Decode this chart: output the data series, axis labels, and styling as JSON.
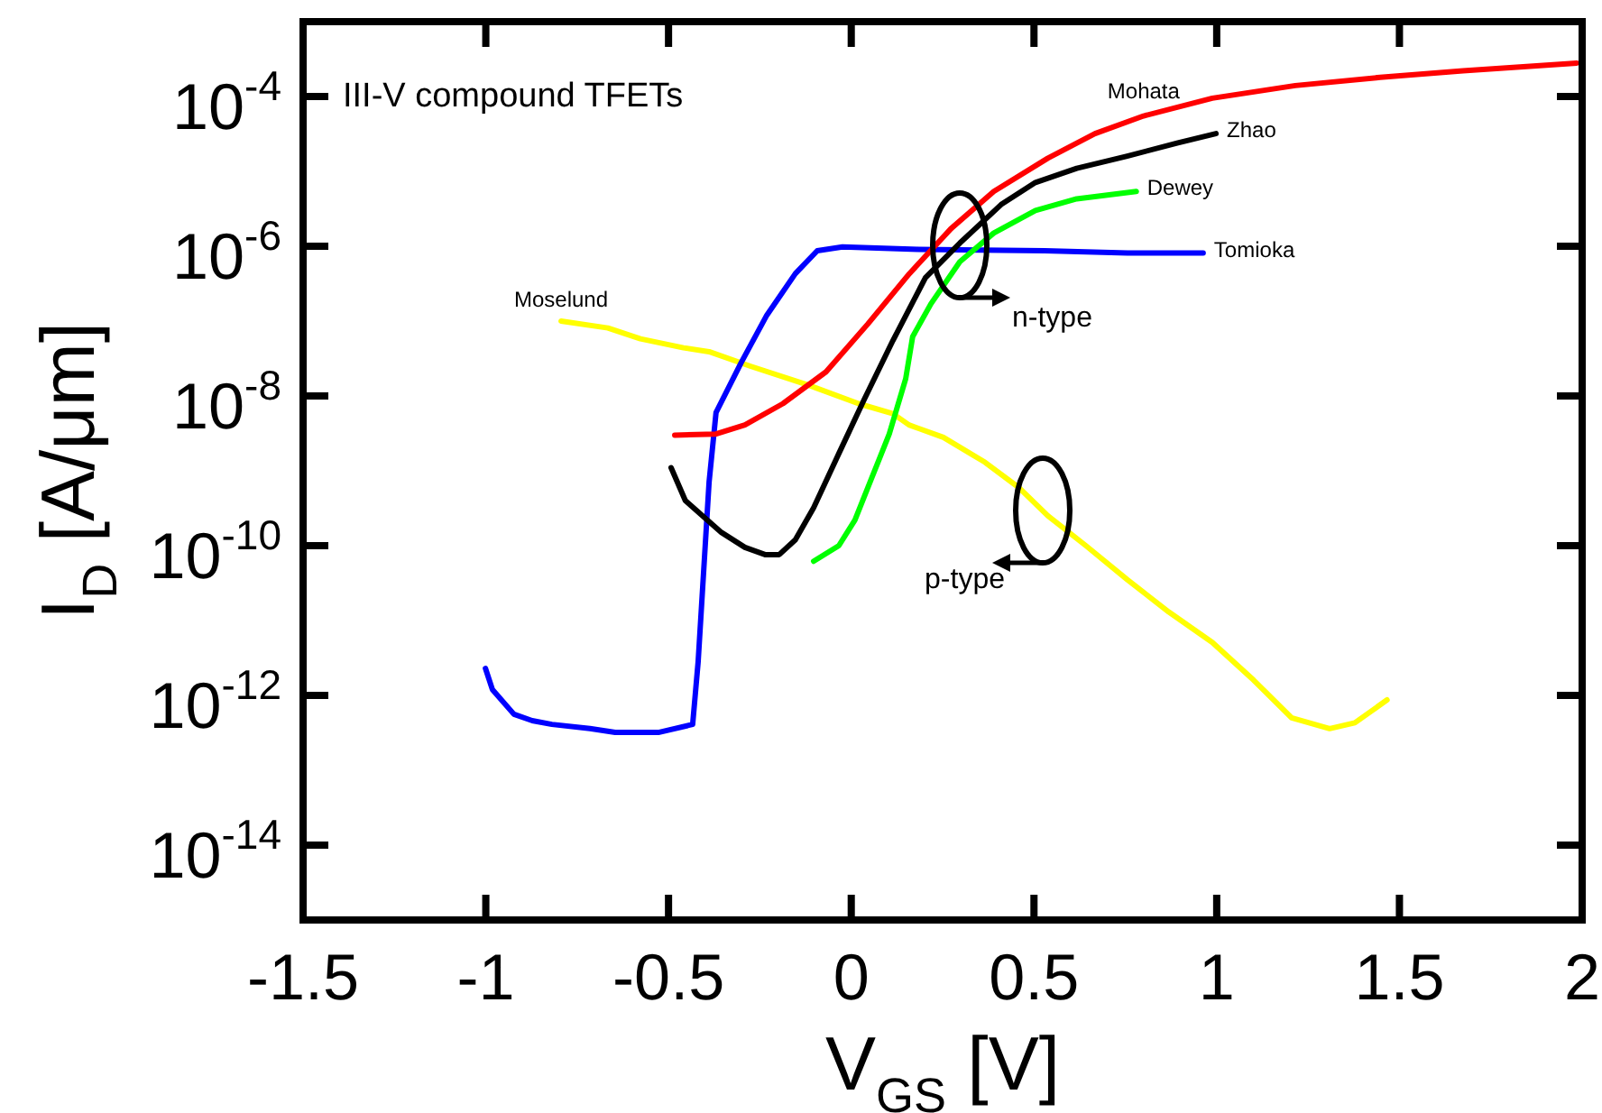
{
  "chart_data": {
    "type": "line",
    "title": "III-V compound TFETs",
    "xlabel": "V$_{GS}$ [V]",
    "ylabel": "I$_{D}$ [A/μm]",
    "log": "y",
    "grid": false,
    "legend": false,
    "marker": "none",
    "line_style": "solid",
    "xlim": [
      -1.5,
      2
    ],
    "xticks": [
      -1.5,
      -1,
      -0.5,
      0,
      0.5,
      1,
      1.5,
      2
    ],
    "ylim": [
      1e-15,
      0.001
    ],
    "yticks": [
      {
        "value": 0.0001,
        "label": "10$^{-4}$"
      },
      {
        "value": 1e-06,
        "label": "10$^{-6}$"
      },
      {
        "value": 1e-08,
        "label": "10$^{-8}$"
      },
      {
        "value": 1e-10,
        "label": "10$^{-10}$"
      },
      {
        "value": 1e-12,
        "label": "10$^{-12}$"
      },
      {
        "value": 1e-14,
        "label": "10$^{-14}$"
      }
    ],
    "annotations": [
      "n-type",
      "p-type"
    ],
    "series": [
      {
        "name": "Mohata",
        "color": "#ff0000",
        "x": [
          -0.483,
          -0.37,
          -0.291,
          -0.187,
          -0.069,
          0.045,
          0.159,
          0.272,
          0.39,
          0.538,
          0.667,
          0.8,
          0.988,
          1.215,
          1.447,
          1.674,
          1.985
        ],
        "values": [
          3e-09,
          3.1e-09,
          4.1e-09,
          7.9e-09,
          2.1e-08,
          9.1e-08,
          4.3e-07,
          1.7e-06,
          5.4e-06,
          1.5e-05,
          3.2e-05,
          5.5e-05,
          9.5e-05,
          0.00014,
          0.00018,
          0.00022,
          0.00028
        ]
      },
      {
        "name": "Zhao",
        "color": "#000000",
        "x": [
          -0.493,
          -0.454,
          -0.355,
          -0.291,
          -0.236,
          -0.197,
          -0.153,
          -0.103,
          -0.034,
          0.035,
          0.114,
          0.203,
          0.297,
          0.41,
          0.504,
          0.617,
          0.755,
          0.894,
          0.998
        ],
        "values": [
          1.1e-09,
          4e-10,
          1.5e-10,
          9.5e-11,
          7.6e-11,
          7.6e-11,
          1.2e-10,
          3.2e-10,
          1.7e-09,
          8.9e-09,
          5.5e-08,
          3.8e-07,
          1.1e-06,
          3.6e-06,
          7.1e-06,
          1.1e-05,
          1.6e-05,
          2.4e-05,
          3.2e-05
        ]
      },
      {
        "name": "Dewey",
        "color": "#00ff00",
        "x": [
          -0.103,
          -0.034,
          0.01,
          0.055,
          0.104,
          0.149,
          0.168,
          0.218,
          0.297,
          0.39,
          0.504,
          0.617,
          0.78
        ],
        "values": [
          6.2e-11,
          1e-10,
          2.2e-10,
          7.8e-10,
          3.1e-09,
          1.7e-08,
          6.2e-08,
          1.7e-07,
          6.2e-07,
          1.5e-06,
          3e-06,
          4.3e-06,
          5.4e-06
        ]
      },
      {
        "name": "Tomioka",
        "color": "#0000ff",
        "x": [
          -1.001,
          -0.982,
          -0.923,
          -0.873,
          -0.819,
          -0.715,
          -0.646,
          -0.528,
          -0.434,
          -0.419,
          -0.389,
          -0.37,
          -0.301,
          -0.231,
          -0.153,
          -0.093,
          -0.024,
          0.183,
          0.529,
          0.756,
          0.963
        ],
        "values": [
          2.3e-12,
          1.2e-12,
          5.6e-13,
          4.6e-13,
          4.1e-13,
          3.6e-13,
          3.2e-13,
          3.2e-13,
          4.1e-13,
          2.8e-12,
          7.1e-10,
          6e-09,
          2.8e-08,
          1.2e-07,
          4.3e-07,
          8.7e-07,
          9.8e-07,
          9.1e-07,
          8.7e-07,
          8.1e-07,
          8.1e-07
        ]
      },
      {
        "name": "Moselund",
        "color": "#ffff00",
        "x": [
          -0.794,
          -0.666,
          -0.577,
          -0.459,
          -0.389,
          -0.276,
          -0.118,
          0.02,
          0.114,
          0.158,
          0.252,
          0.366,
          0.46,
          0.538,
          0.642,
          0.756,
          0.869,
          0.988,
          1.101,
          1.205,
          1.309,
          1.378,
          1.466
        ],
        "values": [
          1e-07,
          8.1e-08,
          5.8e-08,
          4.4e-08,
          3.9e-08,
          2.5e-08,
          1.4e-08,
          7.9e-09,
          5.8e-09,
          4.1e-09,
          2.8e-09,
          1.3e-09,
          5.9e-10,
          2.5e-10,
          1e-10,
          3.5e-11,
          1.3e-11,
          5.1e-12,
          1.6e-12,
          5e-13,
          3.6e-13,
          4.3e-13,
          8.7e-13
        ]
      }
    ]
  }
}
